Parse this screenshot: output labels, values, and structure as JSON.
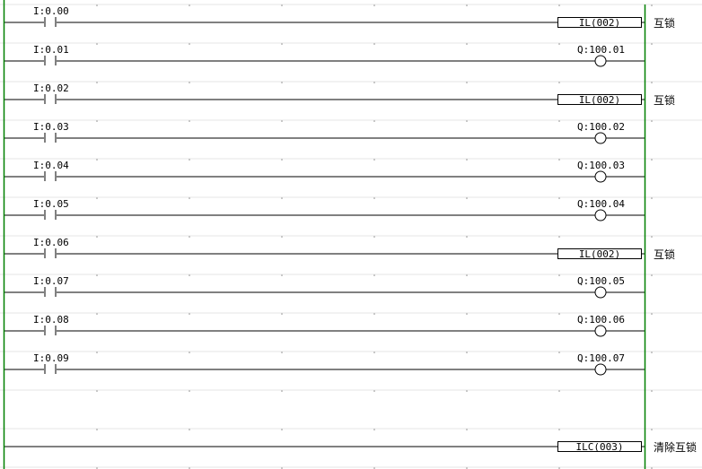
{
  "colors": {
    "power_rail": "#008000",
    "grid": "#e4e4e4",
    "wire": "#000000"
  },
  "rungs": [
    {
      "contact": "I:0.00",
      "output_type": "instruction",
      "output": "IL(002)",
      "comment": "互锁"
    },
    {
      "contact": "I:0.01",
      "output_type": "coil",
      "output": "Q:100.01",
      "comment": ""
    },
    {
      "contact": "I:0.02",
      "output_type": "instruction",
      "output": "IL(002)",
      "comment": "互锁"
    },
    {
      "contact": "I:0.03",
      "output_type": "coil",
      "output": "Q:100.02",
      "comment": ""
    },
    {
      "contact": "I:0.04",
      "output_type": "coil",
      "output": "Q:100.03",
      "comment": ""
    },
    {
      "contact": "I:0.05",
      "output_type": "coil",
      "output": "Q:100.04",
      "comment": ""
    },
    {
      "contact": "I:0.06",
      "output_type": "instruction",
      "output": "IL(002)",
      "comment": "互锁"
    },
    {
      "contact": "I:0.07",
      "output_type": "coil",
      "output": "Q:100.05",
      "comment": ""
    },
    {
      "contact": "I:0.08",
      "output_type": "coil",
      "output": "Q:100.06",
      "comment": ""
    },
    {
      "contact": "I:0.09",
      "output_type": "coil",
      "output": "Q:100.07",
      "comment": ""
    },
    {
      "contact": "",
      "output_type": "empty",
      "output": "",
      "comment": ""
    },
    {
      "contact": "",
      "output_type": "instruction",
      "output": "ILC(003)",
      "comment": "清除互锁"
    }
  ]
}
